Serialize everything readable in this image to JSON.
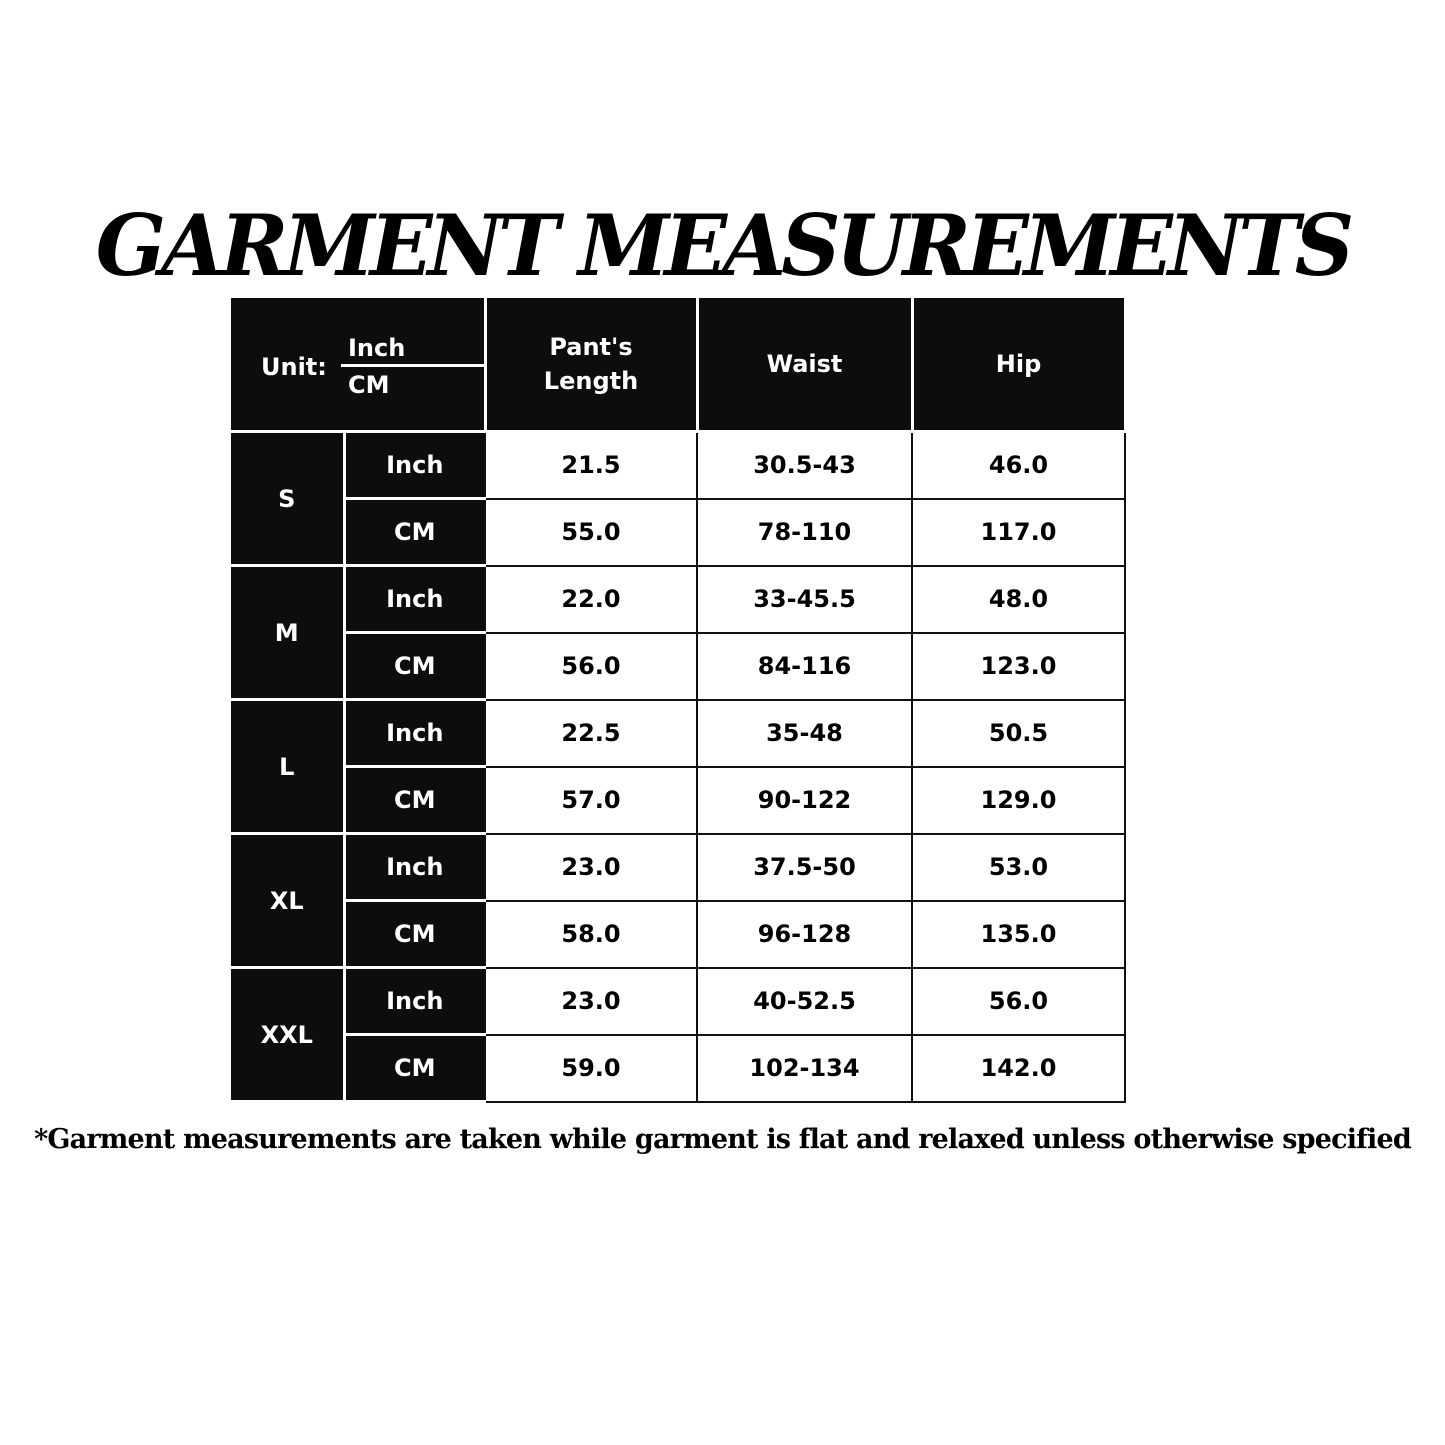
{
  "title": "GARMENT MEASUREMENTS",
  "header": {
    "unit_label": "Unit:",
    "unit_inch": "Inch",
    "unit_cm": "CM",
    "columns": [
      "Pant's Length",
      "Waist",
      "Hip"
    ]
  },
  "rows": [
    {
      "size": "S",
      "inch": {
        "unit": "Inch",
        "values": [
          "21.5",
          "30.5-43",
          "46.0"
        ]
      },
      "cm": {
        "unit": "CM",
        "values": [
          "55.0",
          "78-110",
          "117.0"
        ]
      }
    },
    {
      "size": "M",
      "inch": {
        "unit": "Inch",
        "values": [
          "22.0",
          "33-45.5",
          "48.0"
        ]
      },
      "cm": {
        "unit": "CM",
        "values": [
          "56.0",
          "84-116",
          "123.0"
        ]
      }
    },
    {
      "size": "L",
      "inch": {
        "unit": "Inch",
        "values": [
          "22.5",
          "35-48",
          "50.5"
        ]
      },
      "cm": {
        "unit": "CM",
        "values": [
          "57.0",
          "90-122",
          "129.0"
        ]
      }
    },
    {
      "size": "XL",
      "inch": {
        "unit": "Inch",
        "values": [
          "23.0",
          "37.5-50",
          "53.0"
        ]
      },
      "cm": {
        "unit": "CM",
        "values": [
          "58.0",
          "96-128",
          "135.0"
        ]
      }
    },
    {
      "size": "XXL",
      "inch": {
        "unit": "Inch",
        "values": [
          "23.0",
          "40-52.5",
          "56.0"
        ]
      },
      "cm": {
        "unit": "CM",
        "values": [
          "59.0",
          "102-134",
          "142.0"
        ]
      }
    }
  ],
  "footnote": "*Garment measurements are taken while garment is flat and relaxed unless otherwise specified",
  "colors": {
    "header_bg": "#0d0d0d",
    "header_text": "#ffffff",
    "cell_bg": "#ffffff"
  }
}
